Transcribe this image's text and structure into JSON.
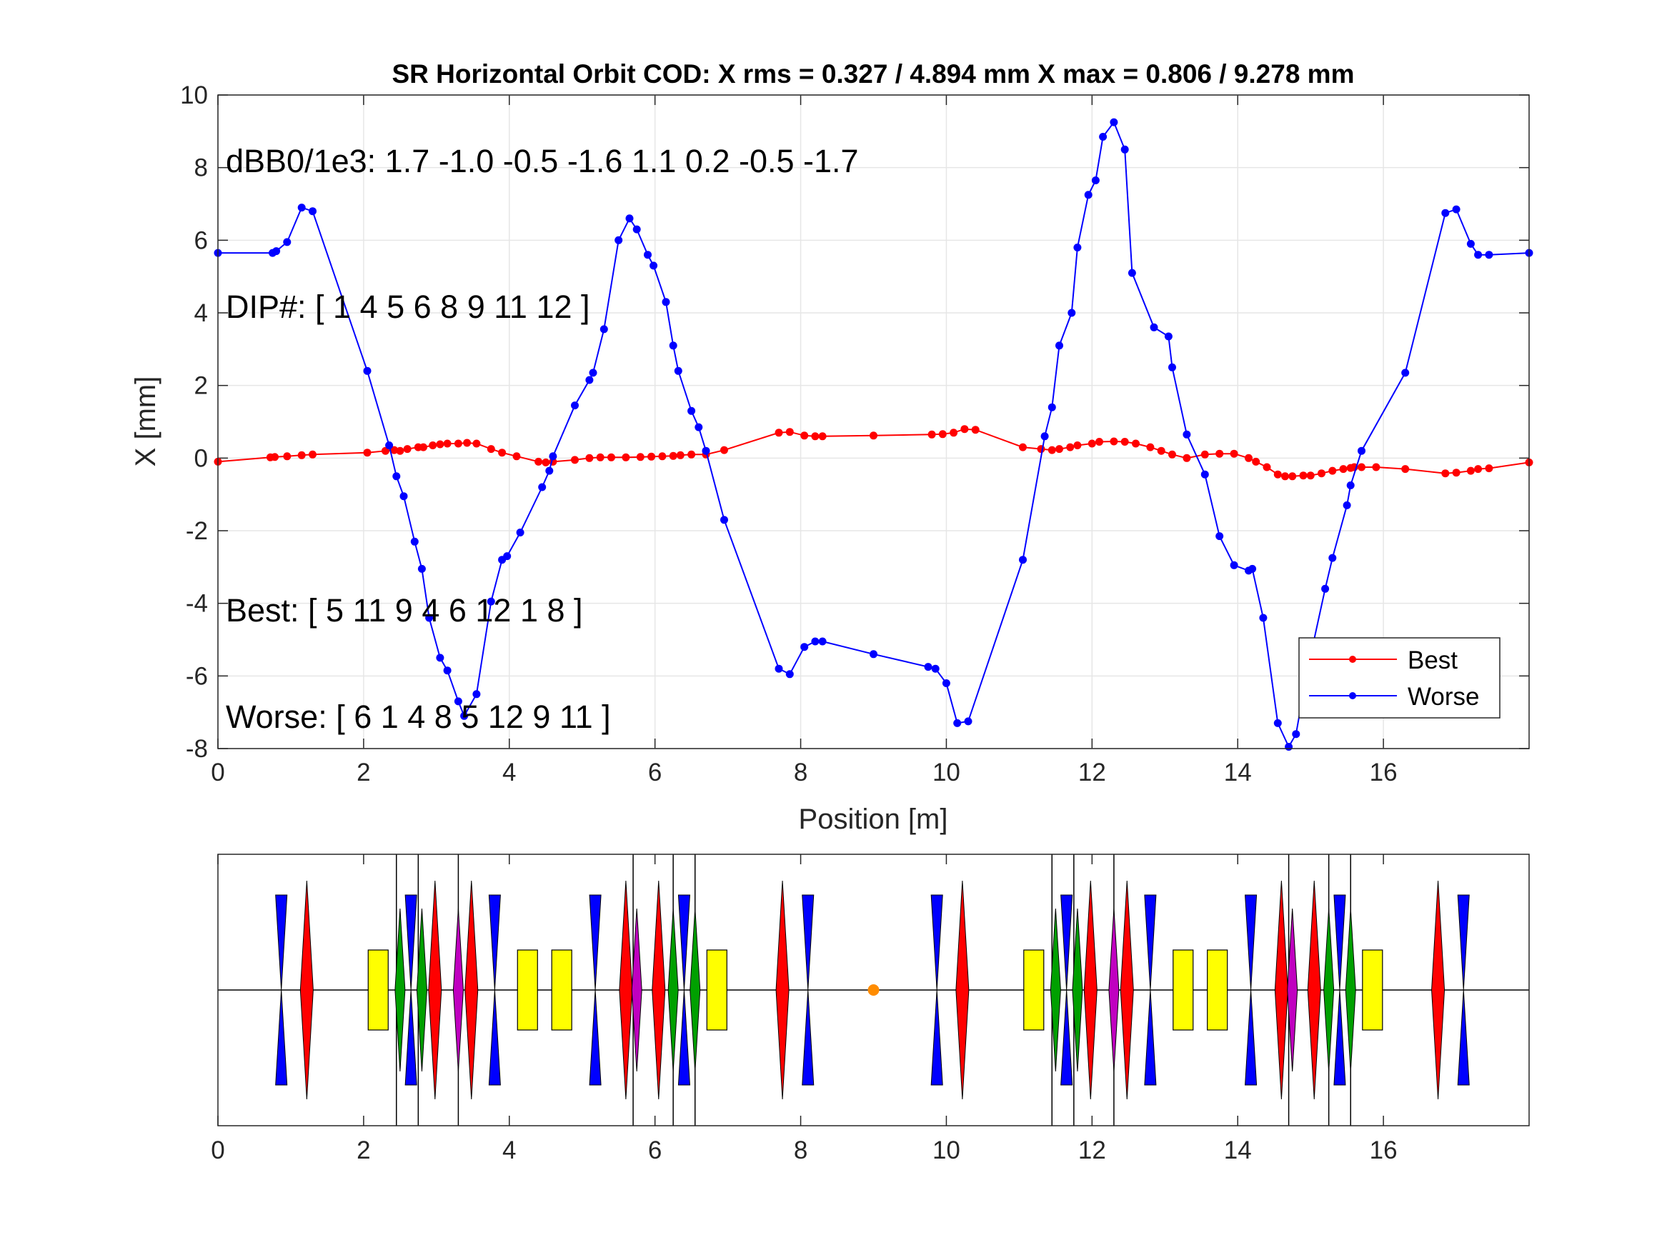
{
  "figure": {
    "title": "SR Horizontal Orbit COD: X rms  = 0.327 / 4.894 mm  X max = 0.806 / 9.278 mm",
    "annotations": [
      "dBB0/1e3: 1.7 -1.0 -0.5 -1.6  1.1  0.2 -0.5 -1.7",
      "DIP#: [ 1   4   5   6   8   9  11  12 ]",
      "Best: [ 5  11   9   4   6  12   1   8 ]",
      "Worse: [ 6   1   4   8   5  12   9  11 ]"
    ],
    "colors": {
      "best": "#ff0000",
      "worse": "#0000ff",
      "grid": "#e6e6e6",
      "focusing_quad": "#0000ff",
      "defocusing_quad": "#ff0000",
      "dipole": "#ffff00",
      "sextupole_green": "#00a000",
      "sextupole_magenta": "#c000c0",
      "marker": "#ff8c00"
    }
  },
  "chart_data": [
    {
      "type": "line",
      "title": "SR Horizontal Orbit COD: X rms  = 0.327 / 4.894 mm  X max = 0.806 / 9.278 mm",
      "xlabel": "Position [m]",
      "ylabel": "X [mm]",
      "xlim": [
        0,
        18
      ],
      "ylim": [
        -8,
        10
      ],
      "xticks": [
        "0",
        "2",
        "4",
        "6",
        "8",
        "10",
        "12",
        "14",
        "16"
      ],
      "yticks": [
        "-8",
        "-6",
        "-4",
        "-2",
        "0",
        "2",
        "4",
        "6",
        "8",
        "10"
      ],
      "grid": true,
      "legend": {
        "placement": "bottom-right",
        "entries": [
          "Best",
          "Worse"
        ]
      },
      "series": [
        {
          "name": "Best",
          "color": "#ff0000",
          "x": [
            0,
            0.72,
            0.78,
            0.95,
            1.15,
            1.3,
            2.05,
            2.3,
            2.42,
            2.5,
            2.6,
            2.75,
            2.82,
            2.95,
            3.05,
            3.15,
            3.3,
            3.42,
            3.55,
            3.75,
            3.9,
            4.1,
            4.4,
            4.5,
            4.6,
            4.9,
            5.1,
            5.25,
            5.4,
            5.6,
            5.8,
            5.95,
            6.1,
            6.25,
            6.35,
            6.5,
            6.7,
            6.95,
            7.7,
            7.85,
            8.05,
            8.2,
            8.3,
            9.0,
            9.8,
            9.95,
            10.1,
            10.25,
            10.4,
            11.05,
            11.3,
            11.45,
            11.55,
            11.7,
            11.8,
            12.0,
            12.1,
            12.3,
            12.45,
            12.6,
            12.8,
            12.95,
            13.1,
            13.3,
            13.55,
            13.75,
            13.95,
            14.15,
            14.25,
            14.4,
            14.55,
            14.65,
            14.75,
            14.9,
            15.0,
            15.15,
            15.3,
            15.45,
            15.55,
            15.6,
            15.7,
            15.9,
            16.3,
            16.85,
            17.0,
            17.2,
            17.3,
            17.45,
            18.0
          ],
          "y": [
            -0.1,
            0.02,
            0.03,
            0.05,
            0.08,
            0.1,
            0.15,
            0.2,
            0.22,
            0.2,
            0.25,
            0.3,
            0.3,
            0.35,
            0.38,
            0.4,
            0.4,
            0.42,
            0.4,
            0.25,
            0.15,
            0.05,
            -0.1,
            -0.12,
            -0.1,
            -0.05,
            0.0,
            0.02,
            0.02,
            0.02,
            0.03,
            0.04,
            0.05,
            0.06,
            0.08,
            0.1,
            0.1,
            0.22,
            0.7,
            0.72,
            0.62,
            0.6,
            0.6,
            0.62,
            0.65,
            0.66,
            0.7,
            0.8,
            0.78,
            0.3,
            0.25,
            0.22,
            0.25,
            0.3,
            0.35,
            0.4,
            0.45,
            0.46,
            0.45,
            0.4,
            0.3,
            0.2,
            0.1,
            0.0,
            0.1,
            0.12,
            0.12,
            0.0,
            -0.1,
            -0.25,
            -0.45,
            -0.5,
            -0.5,
            -0.48,
            -0.48,
            -0.42,
            -0.35,
            -0.3,
            -0.27,
            -0.25,
            -0.25,
            -0.25,
            -0.3,
            -0.42,
            -0.4,
            -0.35,
            -0.3,
            -0.28,
            -0.12
          ]
        },
        {
          "name": "Worse",
          "color": "#0000ff",
          "x": [
            0,
            0.75,
            0.8,
            0.95,
            1.15,
            1.3,
            2.05,
            2.35,
            2.45,
            2.55,
            2.7,
            2.8,
            2.9,
            3.05,
            3.15,
            3.3,
            3.38,
            3.55,
            3.75,
            3.9,
            3.97,
            4.15,
            4.45,
            4.55,
            4.6,
            4.9,
            5.1,
            5.15,
            5.3,
            5.5,
            5.65,
            5.75,
            5.9,
            5.98,
            6.15,
            6.25,
            6.32,
            6.5,
            6.6,
            6.7,
            6.95,
            7.7,
            7.85,
            8.05,
            8.2,
            8.3,
            9.0,
            9.75,
            9.85,
            10.0,
            10.15,
            10.3,
            11.05,
            11.35,
            11.45,
            11.55,
            11.72,
            11.8,
            11.95,
            12.05,
            12.15,
            12.3,
            12.45,
            12.55,
            12.85,
            13.05,
            13.1,
            13.3,
            13.55,
            13.75,
            13.95,
            14.15,
            14.2,
            14.35,
            14.55,
            14.7,
            14.8,
            14.95,
            15.2,
            15.3,
            15.5,
            15.55,
            15.7,
            16.3,
            16.85,
            17.0,
            17.2,
            17.3,
            17.45,
            18.0
          ],
          "y": [
            5.65,
            5.65,
            5.7,
            5.95,
            6.9,
            6.8,
            2.4,
            0.35,
            -0.5,
            -1.05,
            -2.3,
            -3.05,
            -4.4,
            -5.5,
            -5.85,
            -6.7,
            -7.1,
            -6.5,
            -3.95,
            -2.8,
            -2.7,
            -2.05,
            -0.8,
            -0.35,
            0.05,
            1.45,
            2.15,
            2.35,
            3.55,
            6.0,
            6.6,
            6.3,
            5.6,
            5.3,
            4.3,
            3.1,
            2.4,
            1.3,
            0.85,
            0.2,
            -1.7,
            -5.8,
            -5.95,
            -5.2,
            -5.05,
            -5.05,
            -5.4,
            -5.75,
            -5.8,
            -6.2,
            -7.3,
            -7.25,
            -2.8,
            0.6,
            1.4,
            3.1,
            4.0,
            5.8,
            7.25,
            7.65,
            8.85,
            9.25,
            8.5,
            5.1,
            3.6,
            3.35,
            2.5,
            0.65,
            -0.45,
            -2.15,
            -2.95,
            -3.1,
            -3.05,
            -4.4,
            -7.3,
            -7.95,
            -7.6,
            -5.9,
            -3.6,
            -2.75,
            -1.3,
            -0.75,
            0.2,
            2.35,
            6.75,
            6.85,
            5.9,
            5.6,
            5.6,
            5.65
          ]
        }
      ]
    },
    {
      "type": "lattice",
      "xlim": [
        0,
        18
      ],
      "xticks": [
        "0",
        "2",
        "4",
        "6",
        "8",
        "10",
        "12",
        "14",
        "16"
      ],
      "elements": [
        {
          "kind": "focusing",
          "s": 0.87
        },
        {
          "kind": "defocusing",
          "s": 1.22
        },
        {
          "kind": "dipole",
          "s": 2.2
        },
        {
          "kind": "sextupole-green",
          "s": 2.5
        },
        {
          "kind": "focusing",
          "s": 2.65
        },
        {
          "kind": "sextupole-green",
          "s": 2.8
        },
        {
          "kind": "defocusing",
          "s": 2.98
        },
        {
          "kind": "sextupole-magenta",
          "s": 3.3
        },
        {
          "kind": "defocusing",
          "s": 3.48
        },
        {
          "kind": "focusing",
          "s": 3.8
        },
        {
          "kind": "dipole",
          "s": 4.25
        },
        {
          "kind": "dipole",
          "s": 4.72
        },
        {
          "kind": "focusing",
          "s": 5.18
        },
        {
          "kind": "defocusing",
          "s": 5.6
        },
        {
          "kind": "sextupole-magenta",
          "s": 5.75
        },
        {
          "kind": "defocusing",
          "s": 6.05
        },
        {
          "kind": "sextupole-green",
          "s": 6.25
        },
        {
          "kind": "focusing",
          "s": 6.4
        },
        {
          "kind": "sextupole-green",
          "s": 6.55
        },
        {
          "kind": "dipole",
          "s": 6.85
        },
        {
          "kind": "defocusing",
          "s": 7.75
        },
        {
          "kind": "focusing",
          "s": 8.1
        },
        {
          "kind": "marker",
          "s": 9.0
        },
        {
          "kind": "focusing",
          "s": 9.87
        },
        {
          "kind": "defocusing",
          "s": 10.22
        },
        {
          "kind": "dipole",
          "s": 11.2
        },
        {
          "kind": "sextupole-green",
          "s": 11.5
        },
        {
          "kind": "focusing",
          "s": 11.65
        },
        {
          "kind": "sextupole-green",
          "s": 11.8
        },
        {
          "kind": "defocusing",
          "s": 11.98
        },
        {
          "kind": "sextupole-magenta",
          "s": 12.3
        },
        {
          "kind": "defocusing",
          "s": 12.48
        },
        {
          "kind": "focusing",
          "s": 12.8
        },
        {
          "kind": "dipole",
          "s": 13.25
        },
        {
          "kind": "dipole",
          "s": 13.72
        },
        {
          "kind": "focusing",
          "s": 14.18
        },
        {
          "kind": "defocusing",
          "s": 14.6
        },
        {
          "kind": "sextupole-magenta",
          "s": 14.75
        },
        {
          "kind": "defocusing",
          "s": 15.05
        },
        {
          "kind": "sextupole-green",
          "s": 15.25
        },
        {
          "kind": "focusing",
          "s": 15.4
        },
        {
          "kind": "sextupole-green",
          "s": 15.55
        },
        {
          "kind": "dipole",
          "s": 15.85
        },
        {
          "kind": "defocusing",
          "s": 16.75
        },
        {
          "kind": "focusing",
          "s": 17.1
        }
      ],
      "vertical_lines": [
        2.45,
        2.75,
        3.3,
        5.7,
        6.25,
        6.55,
        11.45,
        11.75,
        12.3,
        14.7,
        15.25,
        15.55
      ]
    }
  ]
}
